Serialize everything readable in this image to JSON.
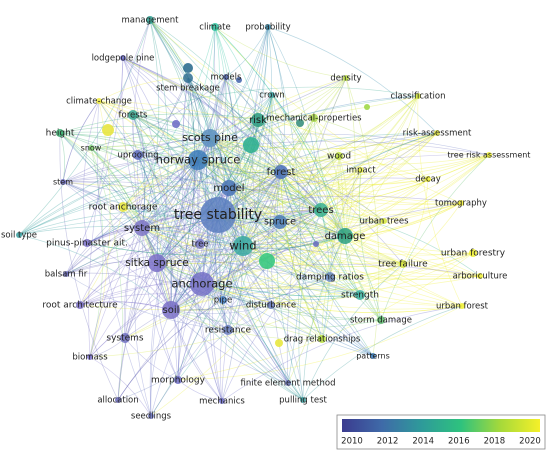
{
  "nodes": [
    {
      "label": "management",
      "color": "#2a9d8f"
    },
    {
      "label": "climate",
      "color": "#2ec4a0"
    },
    {
      "label": "probability",
      "color": "#3a8fb0"
    },
    {
      "label": "lodgepole pine",
      "color": "#6a6ac8"
    },
    {
      "label": "stem breakage",
      "color": "#2f6f90"
    },
    {
      "label": "models",
      "color": "#5566b0"
    },
    {
      "label": "density",
      "color": "#b8dd40"
    },
    {
      "label": "classification",
      "color": "#d6e83a"
    },
    {
      "label": "crown",
      "color": "#3aa0a0"
    },
    {
      "label": "climate-change",
      "color": "#f0ea40"
    },
    {
      "label": "forests",
      "color": "#3aa890"
    },
    {
      "label": "risk",
      "color": "#2a9a80"
    },
    {
      "label": "mechanical-properties",
      "color": "#a8d848"
    },
    {
      "label": "height",
      "color": "#3ab070"
    },
    {
      "label": "scots pine",
      "color": "#5a8ec0"
    },
    {
      "label": "risk-assessment",
      "color": "#e8ec38"
    },
    {
      "label": "snow",
      "color": "#7fd070"
    },
    {
      "label": "uprooting",
      "color": "#5d6cc0"
    },
    {
      "label": "norway spruce",
      "color": "#3a7ab8"
    },
    {
      "label": "wood",
      "color": "#c0e040"
    },
    {
      "label": "tree risk assessment",
      "color": "#ecee30"
    },
    {
      "label": "forest",
      "color": "#4a70b8"
    },
    {
      "label": "impact",
      "color": "#e8ee40"
    },
    {
      "label": "decay",
      "color": "#f0f030"
    },
    {
      "label": "stem",
      "color": "#7070c0"
    },
    {
      "label": "model",
      "color": "#4a74b8"
    },
    {
      "label": "root anchorage",
      "color": "#e8e840"
    },
    {
      "label": "tomography",
      "color": "#f0ee30"
    },
    {
      "label": "trees",
      "color": "#36b090"
    },
    {
      "label": "tree stability",
      "color": "#5a7ec0"
    },
    {
      "label": "urban trees",
      "color": "#d6e640"
    },
    {
      "label": "soil type",
      "color": "#3aa0a0"
    },
    {
      "label": "system",
      "color": "#8078c8"
    },
    {
      "label": "spruce",
      "color": "#4a7ab8"
    },
    {
      "label": "damage",
      "color": "#2aa080"
    },
    {
      "label": "pinus-pinaster ait.",
      "color": "#7a70c8"
    },
    {
      "label": "tree",
      "color": "#7a7ac8"
    },
    {
      "label": "wind",
      "color": "#38a8a0"
    },
    {
      "label": "urban forestry",
      "color": "#eeee30"
    },
    {
      "label": "sitka spruce",
      "color": "#7a70c8"
    },
    {
      "label": "balsam fir",
      "color": "#6a6ab8"
    },
    {
      "label": "damping ratios",
      "color": "#6a88c0"
    },
    {
      "label": "tree failure",
      "color": "#d8e840"
    },
    {
      "label": "arboriculture",
      "color": "#f0f030"
    },
    {
      "label": "anchorage",
      "color": "#7470c8"
    },
    {
      "label": "root architecture",
      "color": "#7a6ec8"
    },
    {
      "label": "pipe",
      "color": "#4a8ad0"
    },
    {
      "label": "disturbance",
      "color": "#6a7ec0"
    },
    {
      "label": "soil",
      "color": "#7a70c8"
    },
    {
      "label": "strength",
      "color": "#3ab0a0"
    },
    {
      "label": "urban forest",
      "color": "#f0f030"
    },
    {
      "label": "storm damage",
      "color": "#60c070"
    },
    {
      "label": "resistance",
      "color": "#6a7ec0"
    },
    {
      "label": "systems",
      "color": "#6f70c0"
    },
    {
      "label": "drag relationships",
      "color": "#b8e040"
    },
    {
      "label": "biomass",
      "color": "#7a70c8"
    },
    {
      "label": "patterns",
      "color": "#3a7ab8"
    },
    {
      "label": "morphology",
      "color": "#7070c8"
    },
    {
      "label": "finite element method",
      "color": "#6a74c0"
    },
    {
      "label": "allocation",
      "color": "#6a6ab8"
    },
    {
      "label": "mechanics",
      "color": "#7070c8"
    },
    {
      "label": "pulling test",
      "color": "#3a9a9a"
    },
    {
      "label": "seedlings",
      "color": "#7078c8"
    }
  ],
  "legend": {
    "ticks": [
      2010,
      2012,
      2014,
      2016,
      2018,
      2020
    ],
    "colors": [
      "#3b3b8f",
      "#3f6aa8",
      "#2e9a9a",
      "#2ec27e",
      "#a6d93a",
      "#f5f029"
    ]
  }
}
